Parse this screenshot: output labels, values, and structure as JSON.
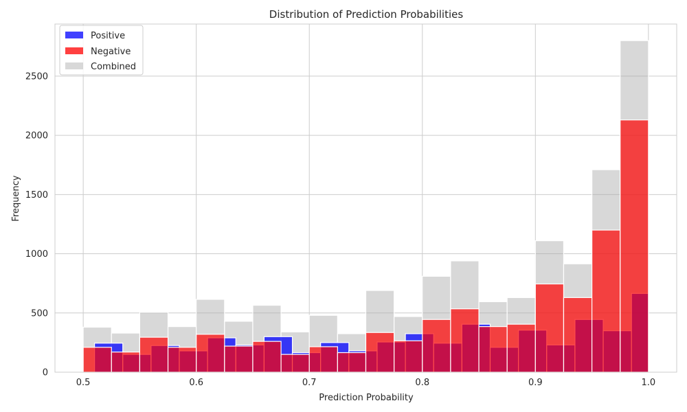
{
  "chart_data": {
    "type": "bar",
    "title": "Distribution of Prediction Probabilities",
    "xlabel": "Prediction Probability",
    "ylabel": "Frequency",
    "xlim": [
      0.475,
      1.025
    ],
    "ylim": [
      0,
      2940
    ],
    "xticks": [
      0.5,
      0.6,
      0.7,
      0.8,
      0.9,
      1.0
    ],
    "xtick_labels": [
      "0.5",
      "0.6",
      "0.7",
      "0.8",
      "0.9",
      "1.0"
    ],
    "yticks": [
      0,
      500,
      1000,
      1500,
      2000,
      2500
    ],
    "ytick_labels": [
      "0",
      "500",
      "1000",
      "1500",
      "2000",
      "2500"
    ],
    "grid": true,
    "legend_position": "top-left",
    "legend": [
      "Positive",
      "Negative",
      "Combined"
    ],
    "colors": {
      "Positive": "#0000ff",
      "Negative": "#ff0000",
      "Combined": "#a9a9a9",
      "grid": "#cccccc",
      "text": "#262626"
    },
    "series": [
      {
        "name": "Combined",
        "bin_edges": [
          0.5,
          0.525,
          0.55,
          0.575,
          0.6,
          0.625,
          0.65,
          0.675,
          0.7,
          0.725,
          0.75,
          0.775,
          0.8,
          0.825,
          0.85,
          0.875,
          0.9,
          0.925,
          0.95,
          0.975,
          1.0
        ],
        "values": [
          380,
          330,
          505,
          385,
          615,
          430,
          565,
          340,
          480,
          325,
          690,
          470,
          810,
          940,
          595,
          630,
          1110,
          915,
          1710,
          2800
        ]
      },
      {
        "name": "Positive",
        "bin_edges": [
          0.51,
          0.535,
          0.56,
          0.585,
          0.61,
          0.635,
          0.66,
          0.685,
          0.71,
          0.735,
          0.76,
          0.785,
          0.81,
          0.835,
          0.86,
          0.885,
          0.91,
          0.935,
          0.96,
          0.985,
          1.0
        ],
        "values": [
          245,
          150,
          225,
          180,
          290,
          230,
          300,
          165,
          250,
          180,
          255,
          325,
          245,
          405,
          210,
          355,
          230,
          445,
          350,
          665
        ]
      },
      {
        "name": "Negative",
        "bin_edges": [
          0.5,
          0.525,
          0.55,
          0.575,
          0.6,
          0.625,
          0.65,
          0.675,
          0.7,
          0.725,
          0.75,
          0.775,
          0.8,
          0.825,
          0.85,
          0.875,
          0.9,
          0.925,
          0.95,
          0.975,
          1.0
        ],
        "values": [
          210,
          170,
          295,
          210,
          320,
          220,
          260,
          150,
          215,
          165,
          335,
          265,
          445,
          535,
          385,
          405,
          745,
          630,
          1200,
          2130
        ]
      }
    ]
  }
}
